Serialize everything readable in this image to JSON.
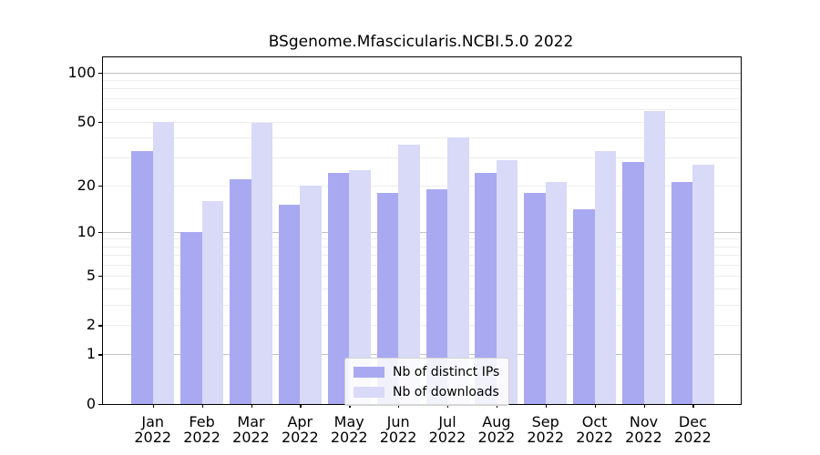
{
  "figure": {
    "background_color": "#ffffff"
  },
  "chart_data": {
    "type": "bar",
    "title": "BSgenome.Mfascicularis.NCBI.5.0 2022",
    "xlabel": "",
    "ylabel": "",
    "categories": [
      "Jan",
      "Feb",
      "Mar",
      "Apr",
      "May",
      "Jun",
      "Jul",
      "Aug",
      "Sep",
      "Oct",
      "Nov",
      "Dec"
    ],
    "x_tick_year_line": "2022",
    "series": [
      {
        "name": "Nb of distinct IPs",
        "color": "#a9a9f2",
        "values": [
          33,
          10,
          22,
          15,
          24,
          18,
          19,
          24,
          18,
          14,
          28,
          21
        ]
      },
      {
        "name": "Nb of downloads",
        "color": "#d9d9f8",
        "values": [
          50,
          16,
          49,
          20,
          25,
          36,
          40,
          29,
          21,
          33,
          58,
          27
        ]
      }
    ],
    "yscale": "log1p",
    "ylim": [
      0,
      124
    ],
    "yticks": [
      100,
      50,
      20,
      10,
      5,
      2,
      1,
      0
    ],
    "ytick_labels": [
      "100",
      "50",
      "20",
      "10",
      "5",
      "2",
      "1",
      "0"
    ],
    "minor_gridlines": [
      2,
      3,
      4,
      5,
      6,
      7,
      8,
      9,
      20,
      30,
      40,
      50,
      60,
      70,
      80,
      90
    ],
    "decade_gridlines": [
      1,
      10,
      100
    ],
    "grid": true,
    "legend_position": "lower center",
    "colors": {
      "axis": "#000000",
      "minor_grid": "#ededed",
      "major_grid": "#c3c3c3",
      "legend_border": "#d2d2d2"
    }
  }
}
